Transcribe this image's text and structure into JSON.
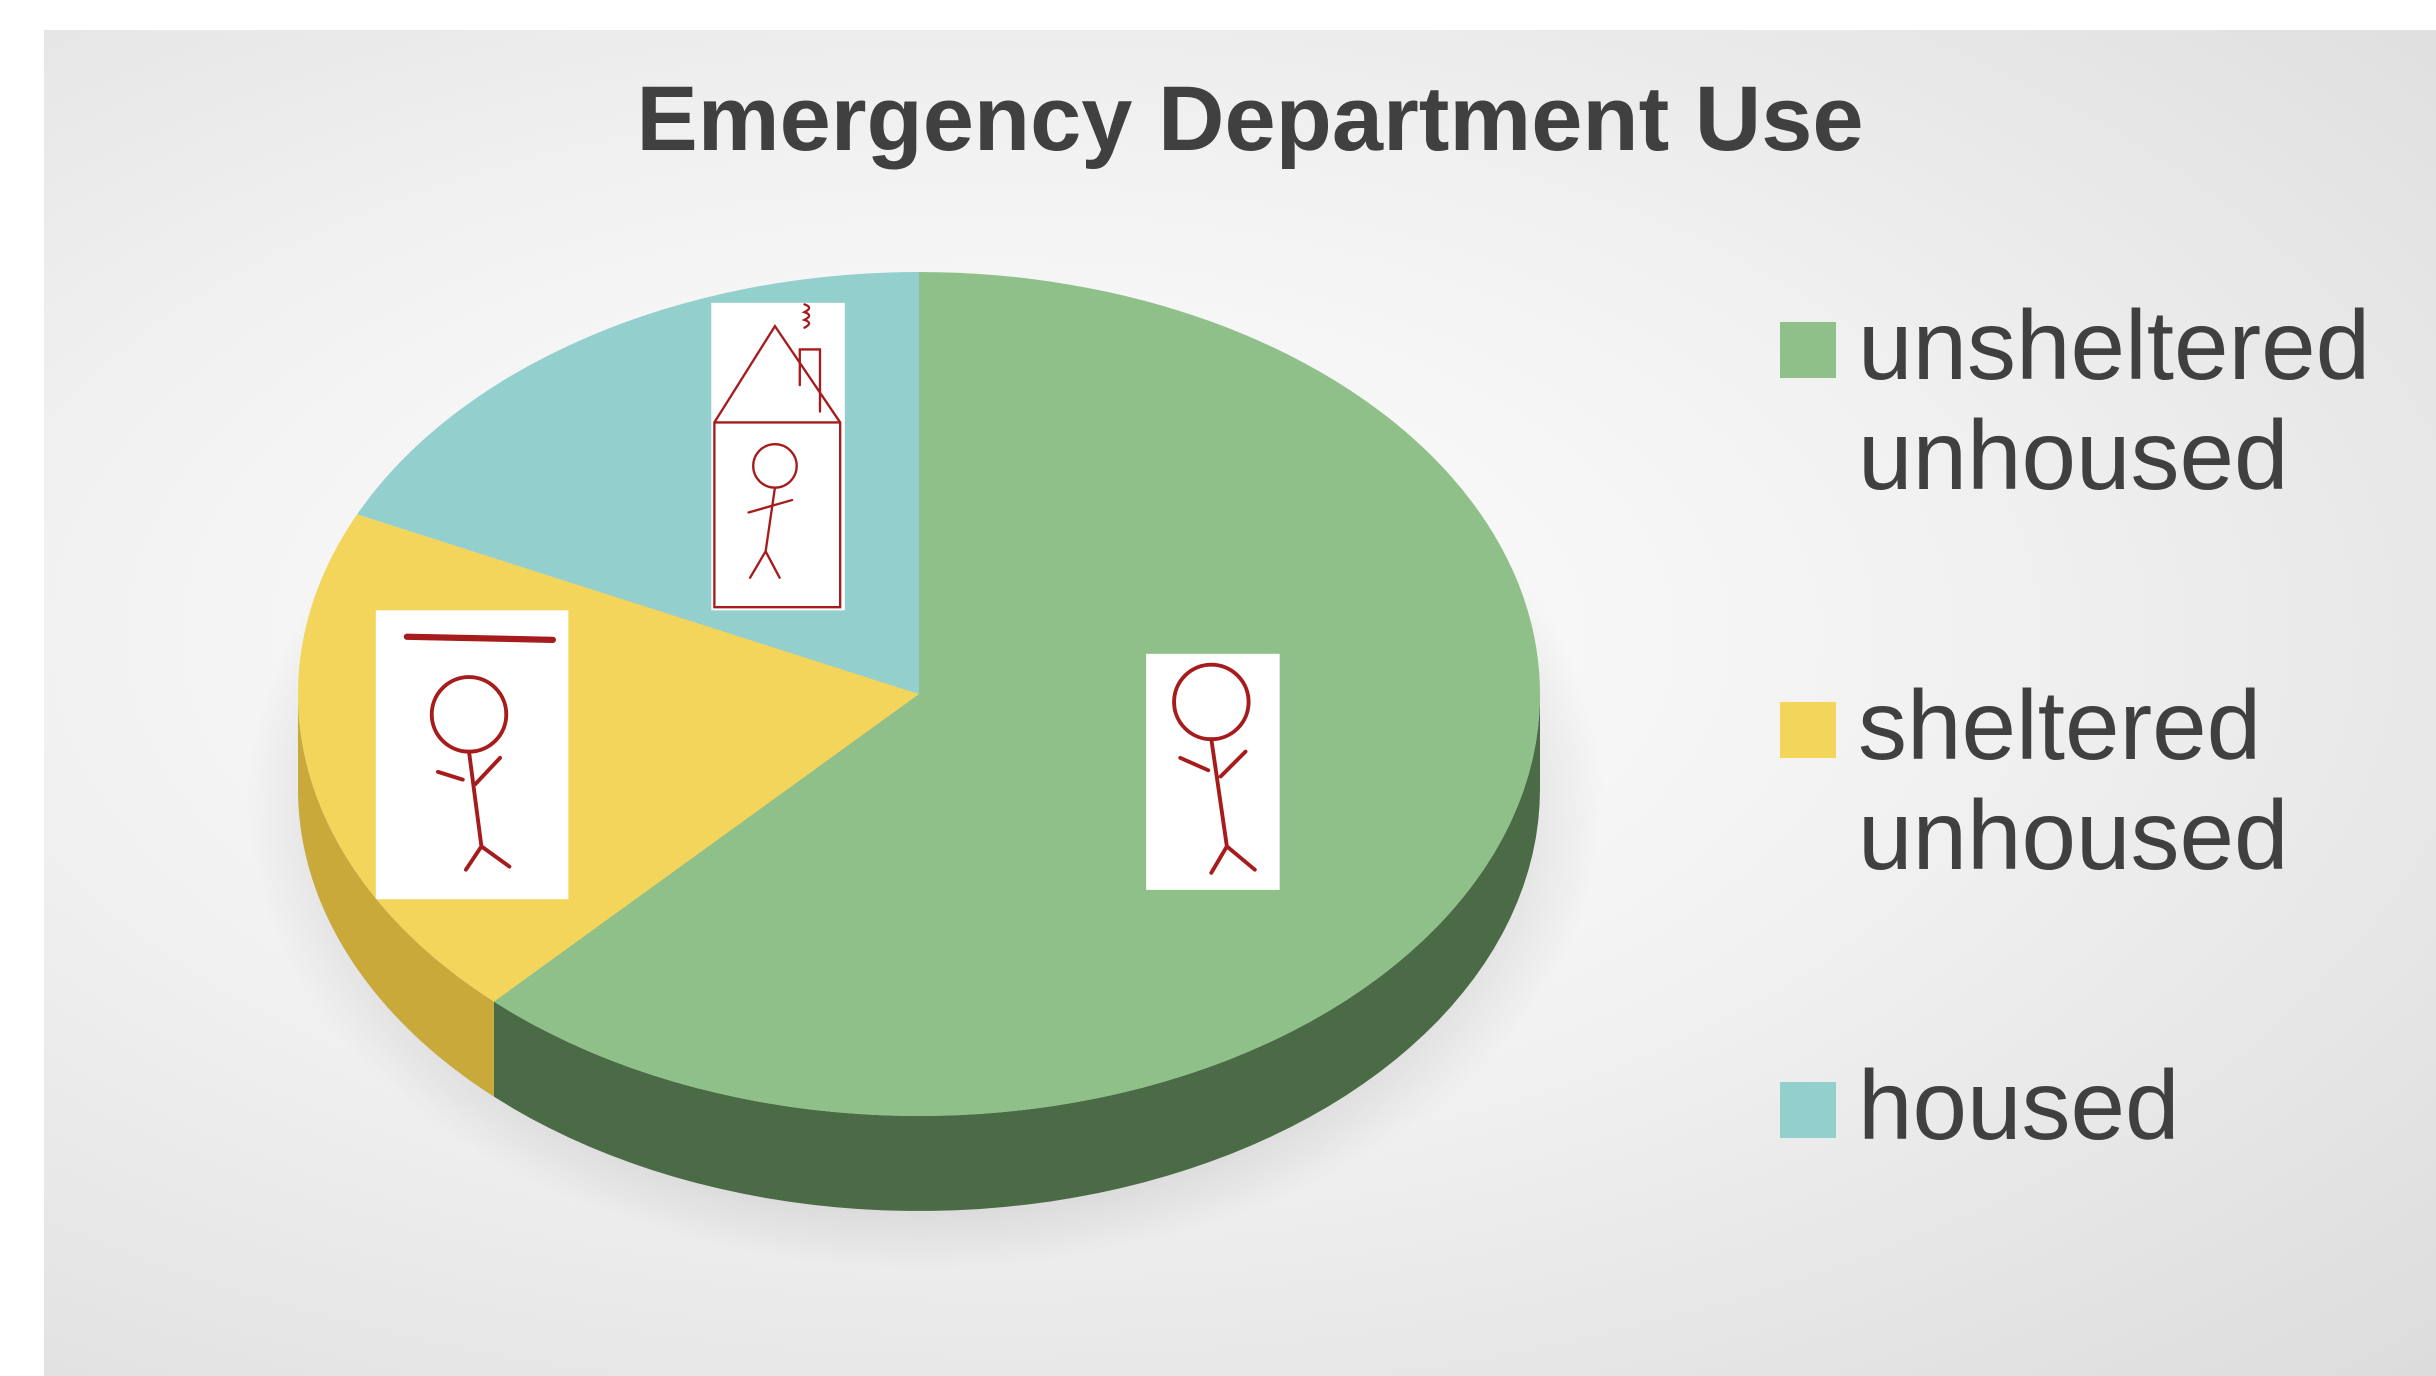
{
  "chart_data": {
    "type": "pie",
    "title": "Emergency Department Use",
    "categories": [
      "unsheltered unhoused",
      "sheltered unhoused",
      "housed"
    ],
    "values": [
      62,
      20,
      18
    ],
    "colors": [
      "#8fc089",
      "#f3d55b",
      "#93cfcd"
    ],
    "side_colors": [
      "#4a6b45",
      "#c9a93a",
      "#5f9e9c"
    ]
  }
}
